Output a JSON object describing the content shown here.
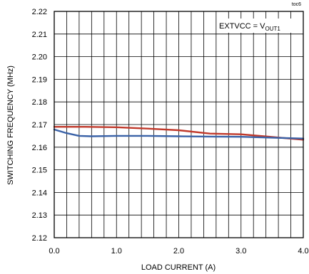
{
  "chart_data": {
    "type": "line",
    "tag": "toc6",
    "xlabel": "LOAD CURRENT (A)",
    "ylabel": "SWITCHING FREQUENCY (MHz)",
    "xlim": [
      0,
      4
    ],
    "ylim": [
      2.12,
      2.22
    ],
    "x_ticks": [
      "0.0",
      "1.0",
      "2.0",
      "3.0",
      "4.0"
    ],
    "y_ticks": [
      "2.12",
      "2.13",
      "2.14",
      "2.15",
      "2.16",
      "2.17",
      "2.18",
      "2.19",
      "2.20",
      "2.21",
      "2.22"
    ],
    "grid": true,
    "annotation": {
      "main": "EXTVCC = V",
      "sub": "OUT1"
    },
    "series": [
      {
        "color": "#c0392b",
        "x": [
          0.0,
          0.5,
          1.0,
          1.5,
          2.0,
          2.5,
          3.0,
          3.5,
          4.0
        ],
        "y": [
          2.169,
          2.169,
          2.1688,
          2.1682,
          2.1675,
          2.166,
          2.1657,
          2.1645,
          2.1633
        ]
      },
      {
        "color": "#3a62a7",
        "x": [
          0.0,
          0.2,
          0.4,
          0.6,
          1.0,
          1.5,
          2.0,
          2.5,
          3.0,
          3.5,
          4.0
        ],
        "y": [
          2.1678,
          2.1662,
          2.165,
          2.1648,
          2.165,
          2.165,
          2.1648,
          2.1647,
          2.1646,
          2.1642,
          2.1638
        ]
      }
    ]
  }
}
